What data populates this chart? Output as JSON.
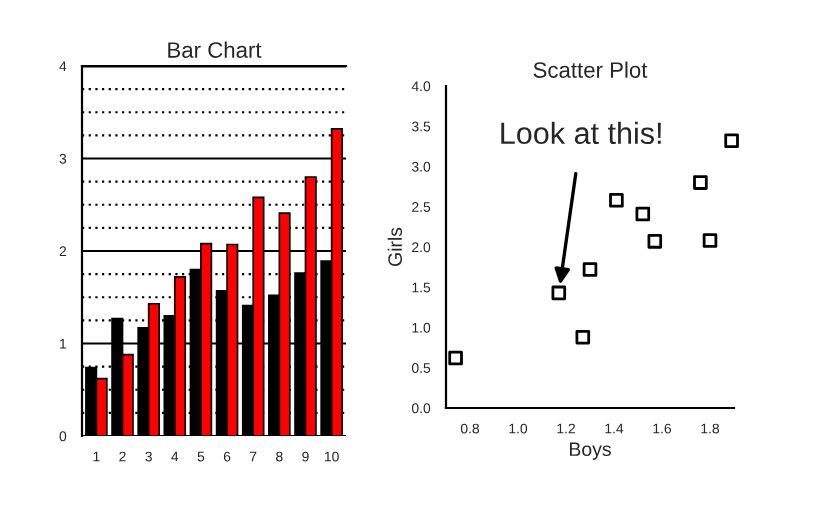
{
  "chart_data": [
    {
      "type": "bar",
      "title": "Bar Chart",
      "categories": [
        "1",
        "2",
        "3",
        "4",
        "5",
        "6",
        "7",
        "8",
        "9",
        "10"
      ],
      "series": [
        {
          "color": "#000000",
          "values": [
            0.74,
            1.27,
            1.17,
            1.3,
            1.8,
            1.57,
            1.41,
            1.52,
            1.76,
            1.89
          ]
        },
        {
          "color": "#ff0000",
          "values": [
            0.62,
            0.88,
            1.43,
            1.72,
            2.08,
            2.07,
            2.58,
            2.41,
            2.8,
            3.32
          ]
        }
      ],
      "ylim": [
        0,
        4
      ],
      "yticks": [
        0,
        1,
        2,
        3,
        4
      ],
      "grid": "y"
    },
    {
      "type": "scatter",
      "title": "Scatter Plot",
      "xlabel": "Boys",
      "ylabel": "Girls",
      "series": [
        {
          "color": "#000000",
          "x": [
            0.74,
            1.27,
            1.17,
            1.3,
            1.8,
            1.57,
            1.41,
            1.52,
            1.76,
            1.89
          ],
          "values": [
            0.62,
            0.88,
            1.43,
            1.72,
            2.08,
            2.07,
            2.58,
            2.41,
            2.8,
            3.32
          ]
        }
      ],
      "marker": "square",
      "xlim": [
        0.7,
        1.9
      ],
      "xticks": [
        0.8,
        {
          "value": 1,
          "label": "1.0"
        },
        1.2,
        1.4,
        1.6,
        1.8
      ],
      "ylim": [
        0,
        4
      ],
      "yticks": [
        {
          "value": 0,
          "label": "0.0"
        },
        0.5,
        {
          "value": 1,
          "label": "1.0"
        },
        1.5,
        {
          "value": 2,
          "label": "2.0"
        },
        2.5,
        {
          "value": 3,
          "label": "3.0"
        },
        3.5,
        {
          "value": 4,
          "label": "4.0"
        }
      ],
      "annotations": [
        {
          "text": "Look at this!",
          "x": 1.17,
          "y": 1.43
        }
      ],
      "grid": false
    }
  ]
}
